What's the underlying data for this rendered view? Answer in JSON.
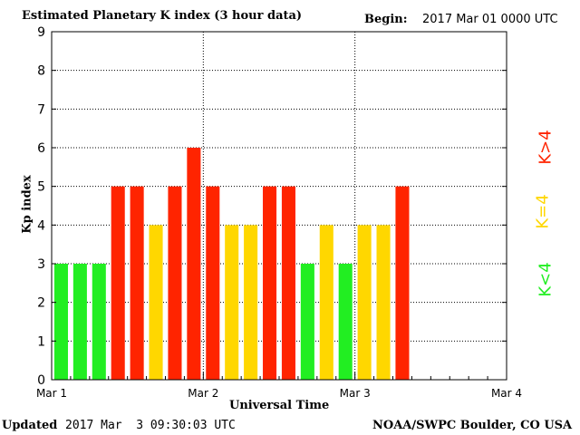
{
  "header": {
    "title": "Estimated Planetary K index (3 hour data)",
    "begin_label": "Begin:",
    "begin_value": "2017 Mar 01 0000 UTC"
  },
  "footer": {
    "updated_label": "Updated",
    "updated_value": "2017 Mar  3 09:30:03 UTC",
    "credit": "NOAA/SWPC Boulder, CO USA"
  },
  "legend": {
    "high": {
      "label": "K>4",
      "color": "#ff2400"
    },
    "mid": {
      "label": "K=4",
      "color": "#ffd700"
    },
    "low": {
      "label": "K<4",
      "color": "#22ee22"
    }
  },
  "chart_data": {
    "type": "bar",
    "title": "Estimated Planetary K index (3 hour data)",
    "xlabel": "Universal Time",
    "ylabel": "Kp index",
    "ylim": [
      0,
      9
    ],
    "y_ticks": [
      "0",
      "1",
      "2",
      "3",
      "4",
      "5",
      "6",
      "7",
      "8",
      "9"
    ],
    "x_ticks": [
      "Mar 1",
      "Mar 2",
      "Mar 3",
      "Mar 4"
    ],
    "grid": true,
    "bar_interval_hours": 3,
    "values": [
      3,
      3,
      3,
      5,
      5,
      4,
      5,
      6,
      5,
      4,
      4,
      5,
      5,
      3,
      4,
      3,
      4,
      4,
      5
    ],
    "colors": {
      "low": "#22ee22",
      "mid": "#ffd700",
      "high": "#ff2400"
    }
  }
}
